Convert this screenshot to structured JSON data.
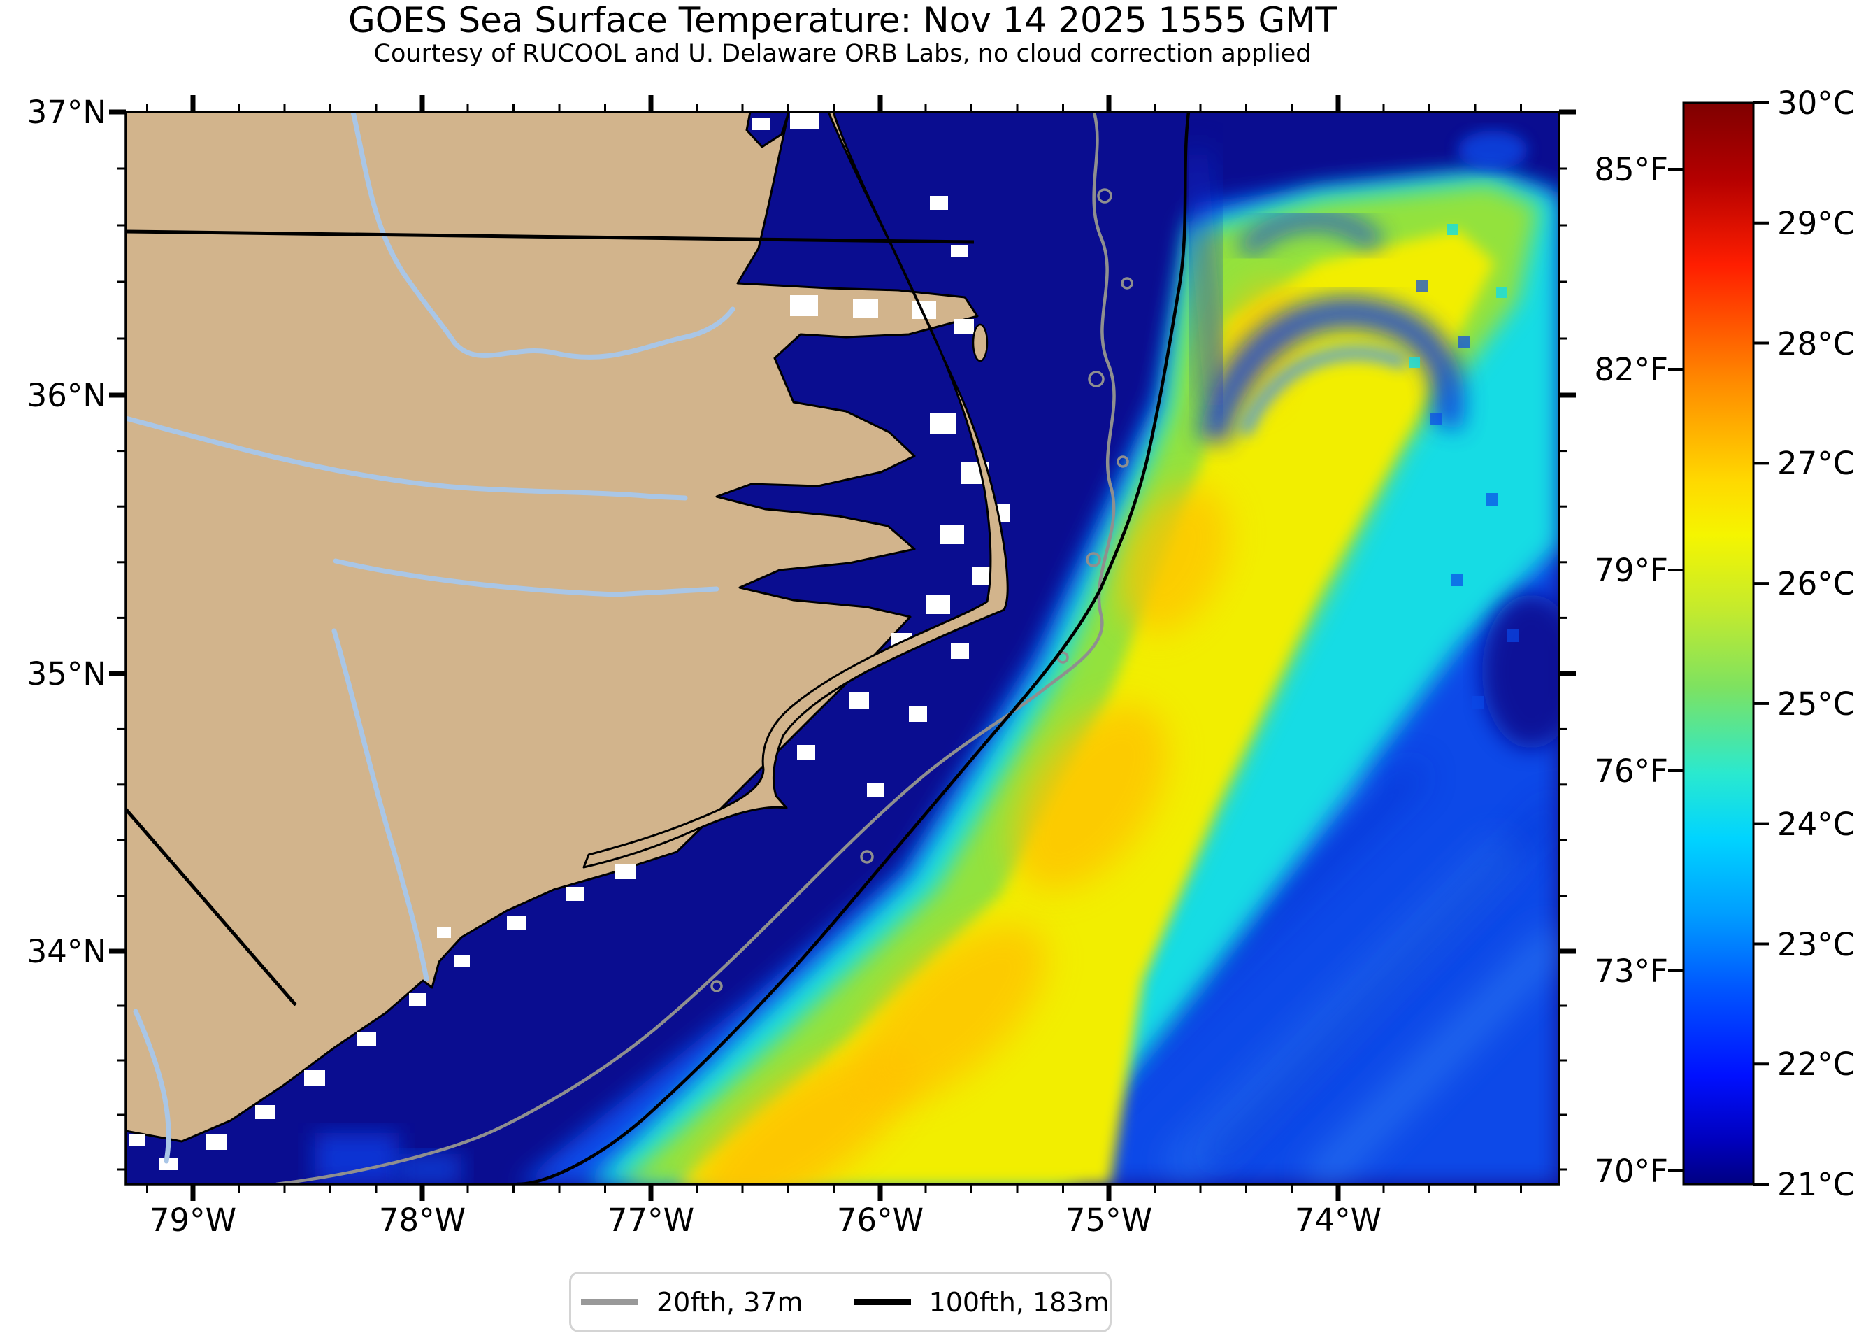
{
  "figure": {
    "title": "GOES Sea Surface Temperature: Nov 14 2025 1555 GMT",
    "subtitle": "Courtesy of RUCOOL and U. Delaware ORB Labs, no cloud correction applied"
  },
  "axes": {
    "x": [
      "79°W",
      "78°W",
      "77°W",
      "76°W",
      "75°W",
      "74°W"
    ],
    "y": [
      "37°N",
      "36°N",
      "35°N",
      "34°N"
    ]
  },
  "colorbar": {
    "c": [
      "30°C",
      "29°C",
      "28°C",
      "27°C",
      "26°C",
      "25°C",
      "24°C",
      "23°C",
      "22°C",
      "21°C"
    ],
    "f": [
      "85°F",
      "82°F",
      "79°F",
      "76°F",
      "73°F",
      "70°F"
    ],
    "colormap": "jet",
    "range_celsius": [
      21,
      30
    ],
    "range_fahrenheit": [
      70,
      86
    ]
  },
  "legend": {
    "items": [
      {
        "label": "20fth, 37m",
        "color": "#999999"
      },
      {
        "label": "100fth, 183m",
        "color": "#000000"
      }
    ]
  },
  "chart_data": {
    "type": "heatmap",
    "title": "GOES Sea Surface Temperature: Nov 14 2025 1555 GMT",
    "subtitle": "Courtesy of RUCOOL and U. Delaware ORB Labs, no cloud correction applied",
    "variable": "sea surface temperature",
    "units": [
      "°C",
      "°F"
    ],
    "colormap": "jet",
    "color_scale_limits_c": [
      21,
      30
    ],
    "colorbar_ticks_c": [
      30,
      29,
      28,
      27,
      26,
      25,
      24,
      23,
      22,
      21
    ],
    "colorbar_ticks_f": [
      85,
      82,
      79,
      76,
      73,
      70
    ],
    "x_axis": {
      "label_ticks": [
        "79°W",
        "78°W",
        "77°W",
        "76°W",
        "75°W",
        "74°W"
      ],
      "range": [
        "79.3°W",
        "73.0°W"
      ],
      "minor_tick_step_deg": 0.2
    },
    "y_axis": {
      "label_ticks": [
        "37°N",
        "36°N",
        "35°N",
        "34°N"
      ],
      "range": [
        "33.1°N",
        "37.0°N"
      ],
      "minor_tick_step_deg": 0.2
    },
    "legend_contours": [
      {
        "name": "20 fathom isobath",
        "label": "20fth, 37m",
        "color": "gray"
      },
      {
        "name": "100 fathom isobath",
        "label": "100fth, 183m",
        "color": "black"
      }
    ],
    "region": "North Carolina coast and adjacent Atlantic (Cape Hatteras, Pamlico Sound, Cape Fear)",
    "features": [
      {
        "name": "gulf-stream-warm-band",
        "approx_temp_c": "26-27.5",
        "description": "broad warm yellow/orange band running diagonally from southwest (near 77.5W 33.2N) to northeast (toward 73.5W 36.5N), seaward of the 100-fathom contour"
      },
      {
        "name": "cold-shelf-water",
        "approx_temp_c": "21",
        "description": "dark navy water covering the continental shelf and sounds inshore of the Gulf Stream front"
      },
      {
        "name": "offshore-mixed-water",
        "approx_temp_c": "22.5-24",
        "description": "medium blue water with diagonal streaks southeast of the warm band"
      },
      {
        "name": "warm-eddy-swirls",
        "approx_temp_c": "22-23",
        "description": "blue swirl filaments in the cold water northeast of Cape Hatteras"
      },
      {
        "name": "land",
        "color": "tan",
        "description": "coastal plain with rivers drawn in light blue and state boundary lines in black"
      },
      {
        "name": "no-data-patches",
        "color": "white",
        "description": "small white squares over sounds and nearshore water (missing data, no cloud correction applied)"
      }
    ]
  }
}
